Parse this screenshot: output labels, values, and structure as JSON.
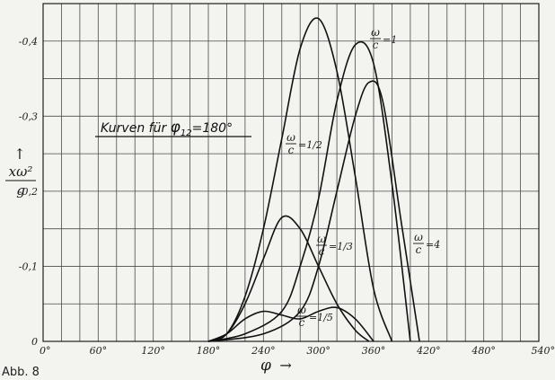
{
  "chart_data": {
    "type": "line",
    "title": "Kurven für φ12 = 180°",
    "title_parts": {
      "prefix": "Kurven für ",
      "symbol": "φ",
      "sub": "12",
      "suffix": "=180°"
    },
    "figure_label": "Abb. 8",
    "x_axis": {
      "symbol": "φ",
      "arrow": "→",
      "range": [
        0,
        540
      ],
      "ticks": [
        0,
        60,
        120,
        180,
        240,
        300,
        360,
        420,
        480,
        540
      ],
      "tick_labels": [
        "0°",
        "60°",
        "120°",
        "180°",
        "240°",
        "300°",
        "360°",
        "420°",
        "480°",
        "540°"
      ]
    },
    "y_axis": {
      "label_numerator": "xω²",
      "label_denominator": "g",
      "arrow": "↑",
      "range": [
        0,
        0.45
      ],
      "ticks": [
        0,
        0.1,
        0.2,
        0.3,
        0.4
      ],
      "tick_labels": [
        "0",
        "-0,1",
        "-0,2",
        "-0,3",
        "-0,4"
      ]
    },
    "grid": true,
    "series": [
      {
        "name": "ω/c = 1/5",
        "label_num": "ω",
        "label_den": "c",
        "label_value": "1/5",
        "x": [
          180,
          200,
          220,
          240,
          260,
          280,
          300,
          320,
          340,
          360
        ],
        "y": [
          0,
          0.01,
          0.03,
          0.04,
          0.035,
          0.03,
          0.04,
          0.045,
          0.03,
          0
        ]
      },
      {
        "name": "ω/c = 1/3",
        "label_num": "ω",
        "label_den": "c",
        "label_value": "1/3",
        "x": [
          180,
          200,
          220,
          240,
          260,
          280,
          300,
          320,
          340,
          355
        ],
        "y": [
          0,
          0.01,
          0.05,
          0.11,
          0.165,
          0.15,
          0.1,
          0.05,
          0.015,
          0
        ]
      },
      {
        "name": "ω/c = 1/2",
        "label_num": "ω",
        "label_den": "c",
        "label_value": "1/2",
        "x": [
          180,
          200,
          220,
          240,
          260,
          280,
          300,
          320,
          340,
          360,
          380
        ],
        "y": [
          0,
          0.01,
          0.06,
          0.15,
          0.27,
          0.39,
          0.43,
          0.36,
          0.22,
          0.07,
          0
        ]
      },
      {
        "name": "ω/c = 1",
        "label_num": "ω",
        "label_den": "c",
        "label_value": "1",
        "x": [
          180,
          220,
          260,
          280,
          300,
          320,
          340,
          360,
          380,
          400
        ],
        "y": [
          0,
          0.01,
          0.04,
          0.1,
          0.19,
          0.32,
          0.395,
          0.37,
          0.21,
          0
        ]
      },
      {
        "name": "ω/c = 4",
        "label_num": "ω",
        "label_den": "c",
        "label_value": "4",
        "x": [
          180,
          240,
          280,
          300,
          320,
          340,
          355,
          370,
          390,
          410
        ],
        "y": [
          0,
          0.01,
          0.04,
          0.1,
          0.2,
          0.3,
          0.345,
          0.32,
          0.16,
          0
        ]
      }
    ]
  }
}
